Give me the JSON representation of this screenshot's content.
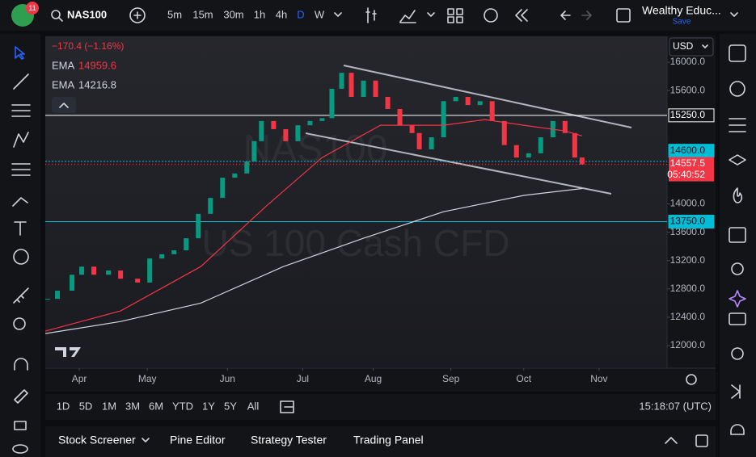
{
  "toolbar": {
    "badge": "11",
    "symbol": "NAS100",
    "intervals": [
      "5m",
      "15m",
      "30m",
      "1h",
      "4h",
      "D",
      "W"
    ],
    "active_interval": "D",
    "account": "Wealthy Educ...",
    "save": "Save"
  },
  "chart_data": {
    "type": "candlestick",
    "currency": "USD",
    "watermark": [
      "NAS100",
      "US 100 Cash CFD"
    ],
    "change": "−170.4 (−1.16%)",
    "countdown": "05:40:52",
    "x": [
      -13,
      -9,
      -3,
      1,
      6,
      12,
      17,
      24,
      29,
      34,
      39,
      44,
      49,
      54,
      59,
      64,
      69,
      72,
      75,
      80,
      85,
      90,
      95,
      100,
      104,
      108,
      112,
      117,
      122,
      127,
      132,
      137,
      140,
      145,
      150,
      155,
      160,
      165,
      170,
      175,
      180,
      185,
      190,
      195,
      200,
      204,
      207
    ],
    "values": [
      12660,
      12775,
      13000,
      13115,
      13000,
      13060,
      12945,
      12890,
      13230,
      13290,
      13345,
      13515,
      13860,
      14085,
      14370,
      14430,
      14600,
      14885,
      15170,
      15055,
      14885,
      15110,
      15170,
      15210,
      15625,
      15850,
      15510,
      15740,
      15510,
      15340,
      15110,
      15000,
      14770,
      14940,
      15450,
      15510,
      15395,
      15450,
      15170,
      14830,
      14655,
      14715,
      14940,
      15170,
      15000,
      14655,
      14557.5
    ],
    "colors": {
      "up": "#089981",
      "down": "#f23645"
    },
    "emas": [
      {
        "name": "EMA",
        "color": "#f23645",
        "x": [
          -14,
          17,
          50,
          77,
          100,
          124,
          150,
          167,
          183,
          200,
          207
        ],
        "values": [
          12205,
          12490,
          13115,
          13970,
          14655,
          15110,
          15110,
          15190,
          15110,
          15030,
          14959.6
        ]
      },
      {
        "name": "EMA",
        "color": "#d1d4dc",
        "x": [
          -14,
          17,
          50,
          84,
          117,
          150,
          183,
          207
        ],
        "values": [
          12170,
          12340,
          12600,
          13115,
          13515,
          13890,
          14120,
          14216.8
        ]
      }
    ],
    "levels": [
      {
        "value": 15250,
        "label": "15250.0",
        "color": "#ffffff"
      },
      {
        "value": 14600,
        "label": "14600.0",
        "color": "#00bcd4"
      },
      {
        "value": 13750,
        "label": "13750.0",
        "color": "#00bcd4"
      }
    ],
    "xlim": [
      -14,
      242
    ],
    "ylim": [
      11693,
      16365
    ],
    "xticks": [
      {
        "value": 0,
        "label": "Apr"
      },
      {
        "value": 28,
        "label": "May"
      },
      {
        "value": 61,
        "label": "Jun"
      },
      {
        "value": 92,
        "label": "Jul"
      },
      {
        "value": 121,
        "label": "Aug"
      },
      {
        "value": 153,
        "label": "Sep"
      },
      {
        "value": 183,
        "label": "Oct"
      },
      {
        "value": 214,
        "label": "Nov"
      }
    ],
    "yticks": [
      {
        "value": 16000,
        "label": "16000.0"
      },
      {
        "value": 15600,
        "label": "15600.0"
      },
      {
        "value": 14000,
        "label": "14000.0"
      },
      {
        "value": 13600,
        "label": "13600.0"
      },
      {
        "value": 13200,
        "label": "13200.0"
      },
      {
        "value": 12800,
        "label": "12800.0"
      },
      {
        "value": 12400,
        "label": "12400.0"
      },
      {
        "value": 12000,
        "label": "12000.0"
      }
    ],
    "grid": false
  },
  "range_bar": {
    "ranges": [
      "1D",
      "5D",
      "1M",
      "3M",
      "6M",
      "YTD",
      "1Y",
      "5Y",
      "All"
    ],
    "clock": "15:18:07 (UTC)"
  },
  "bottom_panel": {
    "tabs": [
      "Stock Screener",
      "Pine Editor",
      "Strategy Tester",
      "Trading Panel"
    ]
  }
}
